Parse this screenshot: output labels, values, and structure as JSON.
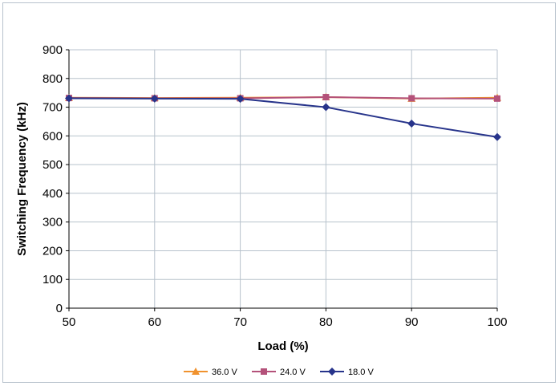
{
  "chart_data": {
    "type": "line",
    "title": "",
    "xlabel": "Load (%)",
    "ylabel": "Switching Frequency (kHz)",
    "x": [
      50,
      60,
      70,
      80,
      90,
      100
    ],
    "xlim": [
      50,
      100
    ],
    "ylim": [
      0,
      900
    ],
    "x_ticks": [
      50,
      60,
      70,
      80,
      90,
      100
    ],
    "y_ticks": [
      0,
      100,
      200,
      300,
      400,
      500,
      600,
      700,
      800,
      900
    ],
    "grid": true,
    "legend_position": "bottom",
    "series": [
      {
        "name": "36.0 V",
        "values": [
          733,
          732,
          733,
          735,
          730,
          733
        ],
        "color": "#f0922e",
        "marker": "triangle"
      },
      {
        "name": "24.0 V",
        "values": [
          732,
          731,
          731,
          735,
          731,
          730
        ],
        "color": "#b4527a",
        "marker": "square"
      },
      {
        "name": "18.0 V",
        "values": [
          731,
          730,
          729,
          700,
          643,
          596
        ],
        "color": "#27348b",
        "marker": "diamond"
      }
    ]
  }
}
